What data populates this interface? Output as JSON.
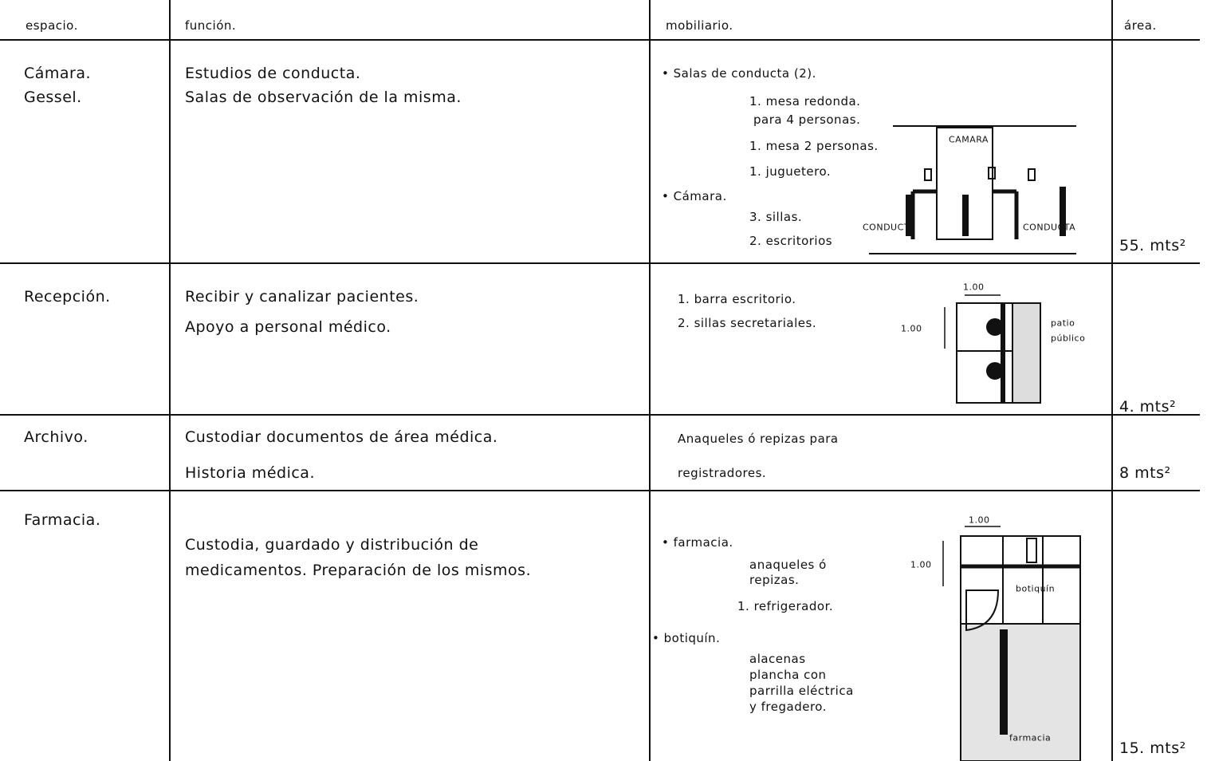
{
  "table": {
    "header": [
      "espacio.",
      "función.",
      "mobiliario.",
      "área."
    ],
    "rows": [
      {
        "espacio": [
          "Cámara.",
          "Gessel."
        ],
        "funcion": [
          "Estudios de conducta.",
          "Salas de observación de la misma."
        ],
        "mobiliario": [
          "• Salas de conducta (2).",
          "1. mesa redonda.",
          "para 4 personas.",
          "1. mesa 2 personas.",
          "1. juguetero.",
          "• Cámara.",
          "3. sillas.",
          "2. escritorios"
        ],
        "diagram": [
          "CAMARA",
          "CONDUCTA",
          "CONDUCTA"
        ],
        "area": "55. mts²"
      },
      {
        "espacio": [
          "Recepción."
        ],
        "funcion": [
          "Recibir y canalizar pacientes.",
          "Apoyo a personal médico."
        ],
        "mobiliario": [
          "1. barra escritorio.",
          "2. sillas secretariales."
        ],
        "diagram": [
          "1.00",
          "1.00",
          "patio",
          "público"
        ],
        "area": "4. mts²"
      },
      {
        "espacio": [
          "Archivo."
        ],
        "funcion": [
          "Custodiar documentos de área médica.",
          "Historia médica."
        ],
        "mobiliario": [
          "Anaqueles ó repizas para",
          "registradores."
        ],
        "diagram": [],
        "area": "8 mts²"
      },
      {
        "espacio": [
          "Farmacia."
        ],
        "funcion": [
          "Custodia, guardado y distribución de",
          "medicamentos. Preparación de los mismos."
        ],
        "mobiliario": [
          "• farmacia.",
          "anaqueles ó",
          "repizas.",
          "1. refrigerador.",
          "• botiquín.",
          "alacenas",
          "plancha con",
          "parrilla eléctrica",
          "y fregadero."
        ],
        "diagram": [
          "1.00",
          "1.00",
          "botiquín",
          "farmacia"
        ],
        "area": "15. mts²"
      }
    ]
  }
}
